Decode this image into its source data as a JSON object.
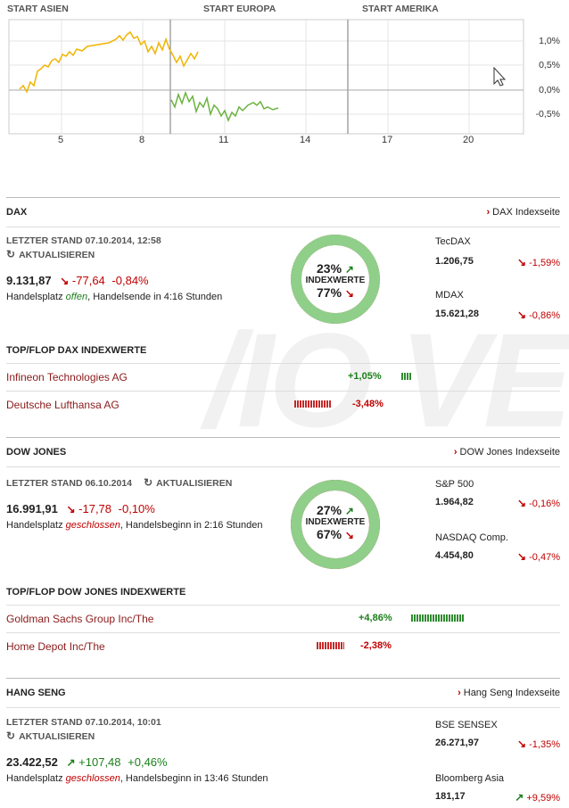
{
  "chart": {
    "regions": [
      "START ASIEN",
      "START EUROPA",
      "START AMERIKA"
    ],
    "y_labels": [
      "1,0%",
      "0,5%",
      "0,0%",
      "-0,5%"
    ],
    "x_labels": [
      "5",
      "8",
      "11",
      "14",
      "17",
      "20"
    ],
    "colors": {
      "asia": "#f0b400",
      "europe": "#6cb33f"
    }
  },
  "dax": {
    "title": "DAX",
    "link": "DAX Indexseite",
    "stand": "LETZTER STAND 07.10.2014, 12:58",
    "refresh": "AKTUALISIEREN",
    "price": "9.131,87",
    "change": "-77,64",
    "change_pct": "-0,84%",
    "hp_prefix": "Handelsplatz",
    "hp_status": "offen",
    "hp_suffix": ", Handelsende in 4:16 Stunden",
    "up_pct": "23%",
    "index_label": "INDEXWERTE",
    "down_pct": "77%",
    "up_fraction": 0.23,
    "side": [
      {
        "name": "TecDAX",
        "value": "1.206,75",
        "change": "-1,59%"
      },
      {
        "name": "MDAX",
        "value": "15.621,28",
        "change": "-0,86%"
      }
    ],
    "topflop_title": "TOP/FLOP DAX INDEXWERTE",
    "top": {
      "name": "Infineon Technologies AG",
      "change": "+1,05%"
    },
    "flop": {
      "name": "Deutsche Lufthansa AG",
      "change": "-3,48%"
    }
  },
  "dow": {
    "title": "DOW JONES",
    "link": "DOW Jones Indexseite",
    "stand": "LETZTER STAND 06.10.2014",
    "refresh": "AKTUALISIEREN",
    "price": "16.991,91",
    "change": "-17,78",
    "change_pct": "-0,10%",
    "hp_prefix": "Handelsplatz",
    "hp_status": "geschlossen",
    "hp_suffix": ", Handelsbeginn in 2:16 Stunden",
    "up_pct": "27%",
    "index_label": "INDEXWERTE",
    "down_pct": "67%",
    "up_fraction": 0.27,
    "down_fraction": 0.67,
    "side": [
      {
        "name": "S&P 500",
        "value": "1.964,82",
        "change": "-0,16%"
      },
      {
        "name": "NASDAQ Comp.",
        "value": "4.454,80",
        "change": "-0,47%"
      }
    ],
    "topflop_title": "TOP/FLOP DOW JONES INDEXWERTE",
    "top": {
      "name": "Goldman Sachs Group Inc/The",
      "change": "+4,86%"
    },
    "flop": {
      "name": "Home Depot Inc/The",
      "change": "-2,38%"
    }
  },
  "hang": {
    "title": "HANG SENG",
    "link": "Hang Seng Indexseite",
    "stand": "LETZTER STAND 07.10.2014, 10:01",
    "refresh": "AKTUALISIEREN",
    "price": "23.422,52",
    "change": "+107,48",
    "change_pct": "+0,46%",
    "hp_prefix": "Handelsplatz",
    "hp_status": "geschlossen",
    "hp_suffix": ", Handelsbeginn in 13:46 Stunden",
    "side": [
      {
        "name": "BSE SENSEX",
        "value": "26.271,97",
        "change": "-1,35%"
      },
      {
        "name": "Bloomberg Asia",
        "value": "181,17",
        "change": "+9,59%"
      }
    ]
  }
}
